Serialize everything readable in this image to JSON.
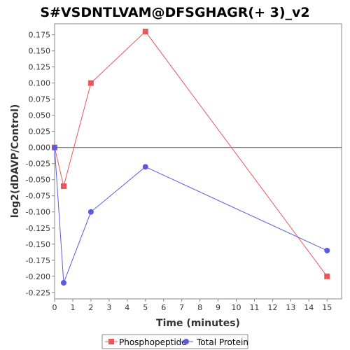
{
  "chart_data": {
    "type": "line",
    "title": "S#VSDNTLVAM@DFSGHAGR(+ 3)_v2",
    "xlabel": "Time (minutes)",
    "ylabel": "log2(dDAVP/Control)",
    "xlim": [
      0,
      15.8
    ],
    "ylim": [
      -0.235,
      0.192
    ],
    "x_ticks": [
      0,
      1,
      2,
      3,
      4,
      5,
      6,
      7,
      8,
      9,
      10,
      11,
      12,
      13,
      14,
      15
    ],
    "y_ticks": [
      -0.225,
      -0.2,
      -0.175,
      -0.15,
      -0.125,
      -0.1,
      -0.075,
      -0.05,
      -0.025,
      0.0,
      0.025,
      0.05,
      0.075,
      0.1,
      0.125,
      0.15,
      0.175
    ],
    "y_tick_labels": [
      "-0.225",
      "-0.200",
      "-0.175",
      "-0.150",
      "-0.125",
      "-0.100",
      "-0.075",
      "-0.050",
      "-0.025",
      "0.000",
      "0.025",
      "0.050",
      "0.075",
      "0.100",
      "0.125",
      "0.150",
      "0.175"
    ],
    "zero_line": true,
    "grid": false,
    "legend_position": "bottom",
    "series": [
      {
        "name": "Phosphopeptide",
        "color": "#e8575a",
        "marker": "square",
        "x": [
          0,
          0.5,
          2,
          5,
          15
        ],
        "y": [
          0.0,
          -0.06,
          0.1,
          0.18,
          -0.2
        ]
      },
      {
        "name": "Total Protein",
        "color": "#5b5be0",
        "marker": "circle",
        "x": [
          0,
          0.5,
          2,
          5,
          15
        ],
        "y": [
          0.0,
          -0.21,
          -0.1,
          -0.03,
          -0.16
        ]
      }
    ]
  }
}
